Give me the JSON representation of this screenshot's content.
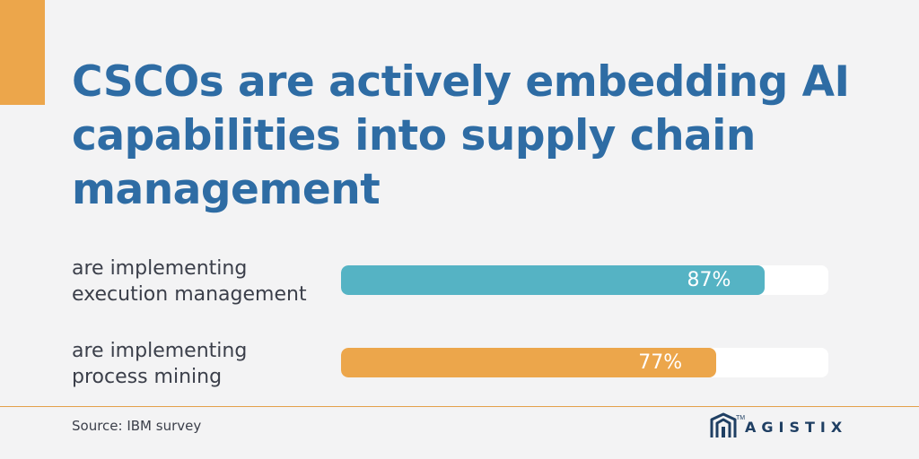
{
  "headline": "CSCOs are actively embedding AI capabilities into supply chain management",
  "chart_data": {
    "type": "bar",
    "orientation": "horizontal",
    "title": "CSCOs are actively embedding AI capabilities into supply chain management",
    "categories": [
      [
        "are implementing",
        "execution management"
      ],
      [
        "are implementing",
        "process mining"
      ]
    ],
    "values": [
      87,
      77
    ],
    "value_labels": [
      "87%",
      "77%"
    ],
    "xlim": [
      0,
      100
    ],
    "grid": false,
    "colors": [
      "#55b3c4",
      "#eca64b"
    ]
  },
  "source": "Source: IBM survey",
  "logo": {
    "icon": "agistix-logo-icon",
    "text": "AGISTIX",
    "trademark": "TM"
  },
  "colors": {
    "accent": "#eca64b",
    "headline": "#2e6ca4",
    "track": "#ffffff",
    "background": "#f3f3f4"
  }
}
